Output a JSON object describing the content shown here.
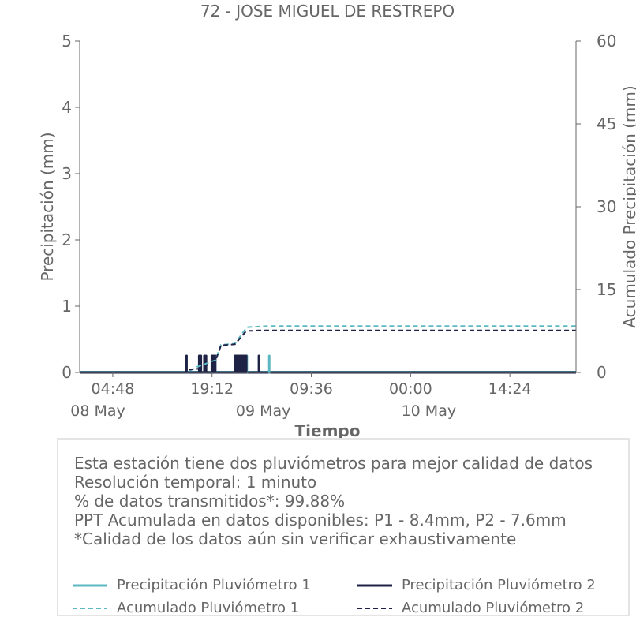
{
  "chart_data": {
    "type": "line",
    "title": "72 - JOSE MIGUEL DE RESTREPO",
    "xlabel": "Tiempo",
    "ylabel_left": "Precipitación (mm)",
    "ylabel_right": "Acumulado Precipitación (mm)",
    "ylim_left": [
      0,
      5
    ],
    "ylim_right": [
      0,
      60
    ],
    "yticks_left": [
      "0",
      "1",
      "2",
      "3",
      "4",
      "5"
    ],
    "yticks_right": [
      "0",
      "15",
      "30",
      "45",
      "60"
    ],
    "xlim": [
      "2024-05-08 00:00",
      "2024-05-11 00:00"
    ],
    "xticks": [
      {
        "x": "2024-05-08 04:48",
        "label": "04:48"
      },
      {
        "x": "2024-05-08 19:12",
        "label": "19:12"
      },
      {
        "x": "2024-05-09 09:36",
        "label": "09:36"
      },
      {
        "x": "2024-05-10 00:00",
        "label": "00:00"
      },
      {
        "x": "2024-05-10 14:24",
        "label": "14:24"
      }
    ],
    "date_labels": [
      {
        "x": "2024-05-08 00:00",
        "label": "08 May"
      },
      {
        "x": "2024-05-09 00:00",
        "label": "09 May"
      },
      {
        "x": "2024-05-10 00:00",
        "label": "10 May"
      }
    ],
    "grid": false,
    "legend_position": "bottom",
    "series": [
      {
        "name": "Precipitación Pluviómetro 1",
        "axis": "left",
        "style": "solid",
        "color": "#5cb8c0",
        "points": [
          [
            "2024-05-08 15:30",
            0.25
          ],
          [
            "2024-05-08 17:20",
            0.25
          ],
          [
            "2024-05-08 18:05",
            0.25
          ],
          [
            "2024-05-08 18:15",
            0.25
          ],
          [
            "2024-05-08 19:10",
            0.25
          ],
          [
            "2024-05-08 19:30",
            0.25
          ],
          [
            "2024-05-08 19:40",
            0.25
          ],
          [
            "2024-05-08 22:30",
            0.25
          ],
          [
            "2024-05-08 22:45",
            0.25
          ],
          [
            "2024-05-08 23:00",
            0.25
          ],
          [
            "2024-05-08 23:15",
            0.25
          ],
          [
            "2024-05-08 23:30",
            0.25
          ],
          [
            "2024-05-08 23:45",
            0.25
          ],
          [
            "2024-05-09 00:00",
            0.25
          ],
          [
            "2024-05-09 00:15",
            0.25
          ],
          [
            "2024-05-09 02:00",
            0.25
          ],
          [
            "2024-05-09 03:30",
            0.25
          ]
        ]
      },
      {
        "name": "Precipitación Pluviómetro 2",
        "axis": "left",
        "style": "solid",
        "color": "#1f2244",
        "points": [
          [
            "2024-05-08 15:30",
            0.25
          ],
          [
            "2024-05-08 17:20",
            0.25
          ],
          [
            "2024-05-08 17:35",
            0.25
          ],
          [
            "2024-05-08 18:05",
            0.25
          ],
          [
            "2024-05-08 18:20",
            0.25
          ],
          [
            "2024-05-08 19:10",
            0.25
          ],
          [
            "2024-05-08 19:20",
            0.25
          ],
          [
            "2024-05-08 19:30",
            0.25
          ],
          [
            "2024-05-08 19:40",
            0.25
          ],
          [
            "2024-05-08 22:30",
            0.25
          ],
          [
            "2024-05-08 22:40",
            0.25
          ],
          [
            "2024-05-08 22:50",
            0.25
          ],
          [
            "2024-05-08 23:00",
            0.25
          ],
          [
            "2024-05-08 23:10",
            0.25
          ],
          [
            "2024-05-08 23:20",
            0.25
          ],
          [
            "2024-05-08 23:30",
            0.25
          ],
          [
            "2024-05-08 23:40",
            0.25
          ],
          [
            "2024-05-08 23:50",
            0.25
          ],
          [
            "2024-05-09 00:00",
            0.25
          ],
          [
            "2024-05-09 00:10",
            0.25
          ],
          [
            "2024-05-09 02:00",
            0.25
          ]
        ]
      },
      {
        "name": "Acumulado Pluviómetro 1",
        "axis": "right",
        "style": "dashed",
        "color": "#5cb8c0",
        "points": [
          [
            "2024-05-08 00:00",
            0
          ],
          [
            "2024-05-08 15:30",
            0
          ],
          [
            "2024-05-08 17:00",
            1.0
          ],
          [
            "2024-05-08 19:40",
            2.2
          ],
          [
            "2024-05-08 20:30",
            5.0
          ],
          [
            "2024-05-08 22:30",
            5.2
          ],
          [
            "2024-05-09 00:15",
            8.2
          ],
          [
            "2024-05-09 03:30",
            8.4
          ],
          [
            "2024-05-11 00:00",
            8.4
          ]
        ]
      },
      {
        "name": "Acumulado Pluviómetro 2",
        "axis": "right",
        "style": "dashed",
        "color": "#1f2244",
        "points": [
          [
            "2024-05-08 00:00",
            0
          ],
          [
            "2024-05-08 15:30",
            0
          ],
          [
            "2024-05-08 15:45",
            0.5
          ],
          [
            "2024-05-08 17:20",
            0.7
          ],
          [
            "2024-05-08 19:40",
            2.0
          ],
          [
            "2024-05-08 20:30",
            4.9
          ],
          [
            "2024-05-08 22:30",
            5.1
          ],
          [
            "2024-05-09 00:10",
            7.5
          ],
          [
            "2024-05-09 02:00",
            7.6
          ],
          [
            "2024-05-11 00:00",
            7.6
          ]
        ]
      }
    ]
  },
  "info": {
    "lines": [
      "Esta estación tiene dos pluviómetros para mejor calidad de datos",
      "Resolución temporal: 1 minuto",
      "% de datos transmitidos*: 99.88%",
      "PPT Acumulada en datos disponibles: P1 - 8.4mm, P2 - 7.6mm",
      "*Calidad de los datos aún sin verificar exhaustivamente"
    ]
  }
}
